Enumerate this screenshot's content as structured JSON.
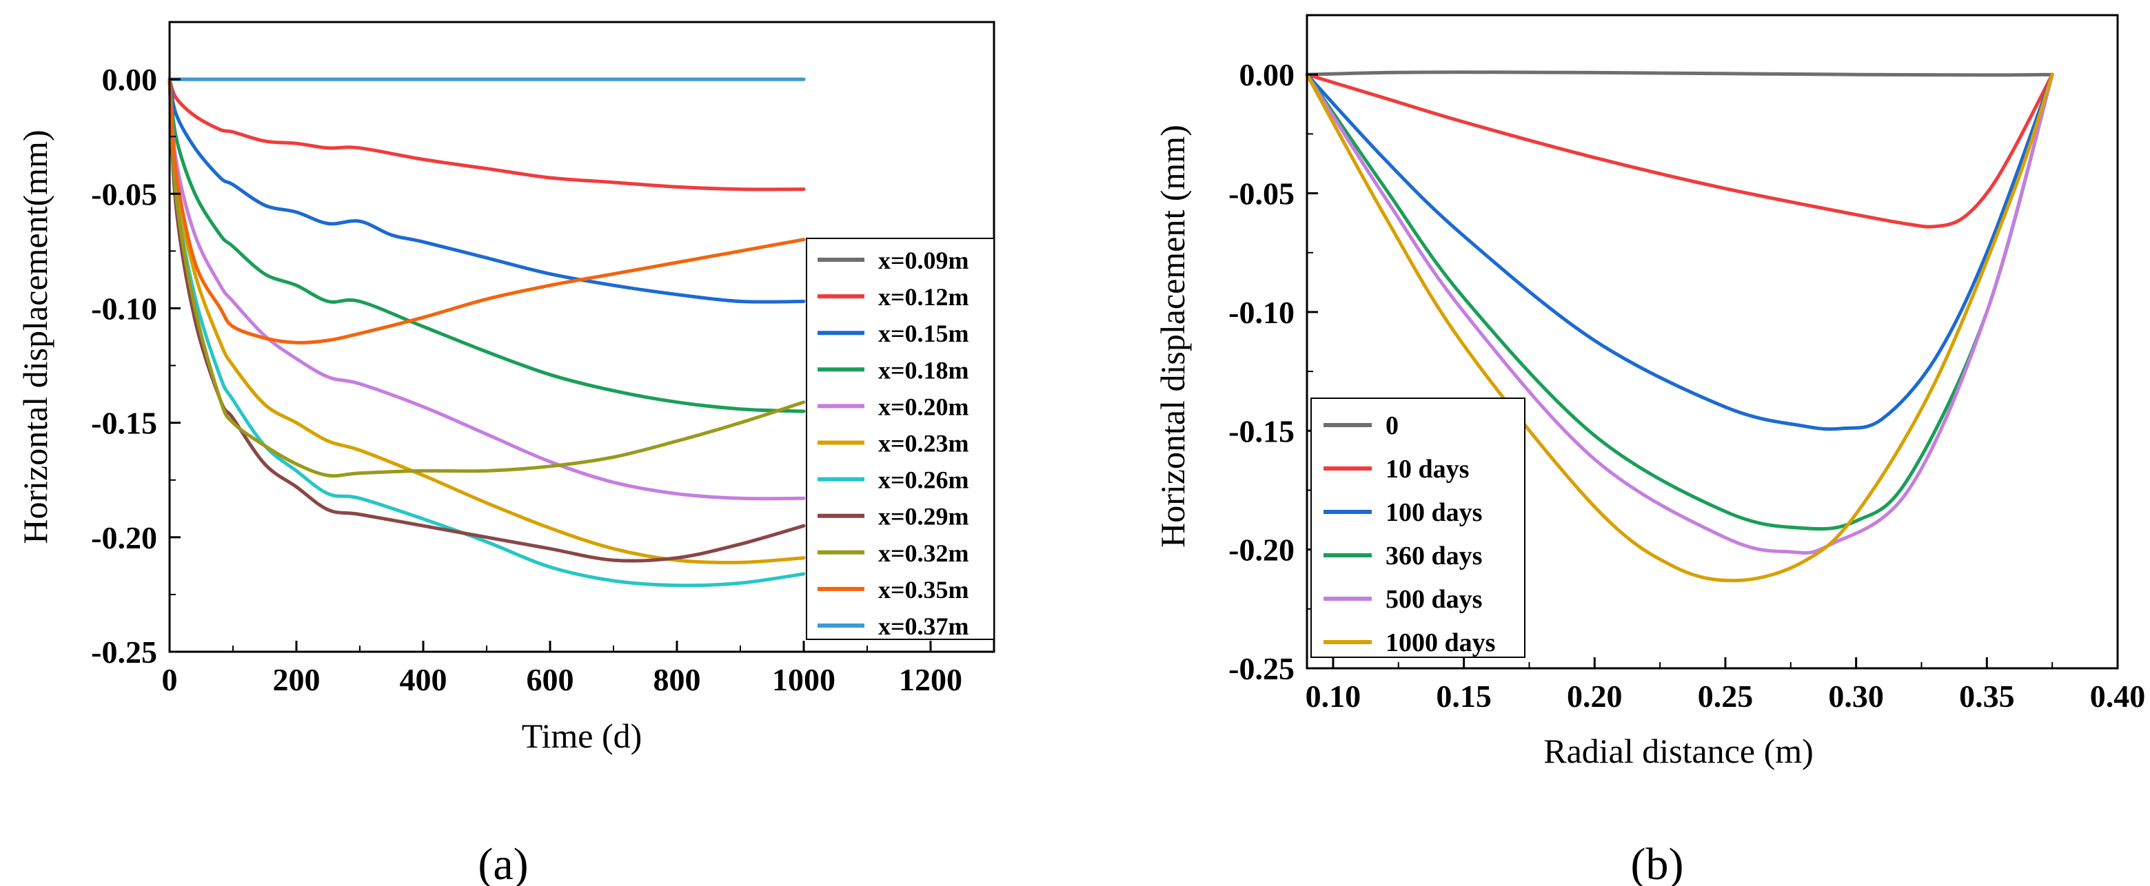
{
  "figure": {
    "panel_labels": [
      "(a)",
      "(b)"
    ]
  },
  "chart_data": [
    {
      "type": "line",
      "panel": "(a)",
      "title": "",
      "xlabel": "Time (d)",
      "ylabel": "Horizontal displacement(mm)",
      "xlim": [
        0,
        1300
      ],
      "ylim": [
        -0.25,
        0.025
      ],
      "xticks": [
        "0",
        "200",
        "400",
        "600",
        "800",
        "1000",
        "1200"
      ],
      "yticks": [
        "0.00",
        "-0.05",
        "-0.10",
        "-0.15",
        "-0.20",
        "-0.25"
      ],
      "grid": false,
      "legend_position": "right",
      "series": [
        {
          "name": "x=0.09m",
          "color": "#6e6e6e",
          "x": [
            0,
            1000
          ],
          "y": [
            0,
            0
          ]
        },
        {
          "name": "x=0.12m",
          "color": "#f03c3c",
          "x": [
            0,
            10,
            40,
            80,
            100,
            150,
            200,
            250,
            300,
            400,
            500,
            600,
            700,
            800,
            900,
            1000
          ],
          "y": [
            0,
            -0.008,
            -0.016,
            -0.022,
            -0.023,
            -0.027,
            -0.028,
            -0.03,
            -0.03,
            -0.035,
            -0.039,
            -0.043,
            -0.045,
            -0.047,
            -0.048,
            -0.048
          ]
        },
        {
          "name": "x=0.15m",
          "color": "#1c6ad3",
          "x": [
            0,
            10,
            40,
            80,
            100,
            150,
            200,
            250,
            300,
            350,
            400,
            500,
            600,
            700,
            800,
            900,
            1000
          ],
          "y": [
            0,
            -0.015,
            -0.03,
            -0.043,
            -0.046,
            -0.055,
            -0.058,
            -0.063,
            -0.062,
            -0.068,
            -0.071,
            -0.078,
            -0.085,
            -0.09,
            -0.094,
            -0.097,
            -0.097
          ]
        },
        {
          "name": "x=0.18m",
          "color": "#1a9e58",
          "x": [
            0,
            10,
            40,
            80,
            100,
            150,
            200,
            250,
            300,
            400,
            500,
            600,
            700,
            800,
            900,
            1000
          ],
          "y": [
            0,
            -0.025,
            -0.05,
            -0.068,
            -0.073,
            -0.085,
            -0.09,
            -0.097,
            -0.097,
            -0.108,
            -0.119,
            -0.129,
            -0.136,
            -0.141,
            -0.144,
            -0.145
          ]
        },
        {
          "name": "x=0.20m",
          "color": "#c57ee0",
          "x": [
            0,
            10,
            40,
            80,
            100,
            150,
            200,
            250,
            300,
            400,
            500,
            600,
            700,
            800,
            900,
            1000
          ],
          "y": [
            0,
            -0.035,
            -0.068,
            -0.09,
            -0.097,
            -0.112,
            -0.122,
            -0.13,
            -0.133,
            -0.143,
            -0.155,
            -0.167,
            -0.176,
            -0.181,
            -0.183,
            -0.183
          ]
        },
        {
          "name": "x=0.23m",
          "color": "#d8a000",
          "x": [
            0,
            10,
            40,
            80,
            100,
            150,
            200,
            250,
            300,
            400,
            500,
            600,
            700,
            800,
            900,
            1000
          ],
          "y": [
            0,
            -0.045,
            -0.085,
            -0.115,
            -0.125,
            -0.142,
            -0.15,
            -0.158,
            -0.162,
            -0.173,
            -0.185,
            -0.196,
            -0.205,
            -0.21,
            -0.211,
            -0.209
          ]
        },
        {
          "name": "x=0.26m",
          "color": "#26c6c6",
          "x": [
            0,
            10,
            40,
            80,
            100,
            150,
            200,
            250,
            300,
            400,
            500,
            600,
            700,
            800,
            900,
            1000
          ],
          "y": [
            0,
            -0.05,
            -0.095,
            -0.13,
            -0.14,
            -0.16,
            -0.171,
            -0.181,
            -0.183,
            -0.192,
            -0.202,
            -0.213,
            -0.219,
            -0.221,
            -0.22,
            -0.216
          ]
        },
        {
          "name": "x=0.29m",
          "color": "#8a4646",
          "x": [
            0,
            10,
            40,
            80,
            100,
            150,
            200,
            250,
            300,
            400,
            500,
            600,
            700,
            800,
            900,
            1000
          ],
          "y": [
            0,
            -0.055,
            -0.105,
            -0.14,
            -0.148,
            -0.168,
            -0.178,
            -0.188,
            -0.19,
            -0.195,
            -0.2,
            -0.205,
            -0.21,
            -0.209,
            -0.203,
            -0.195
          ]
        },
        {
          "name": "x=0.32m",
          "color": "#9a9a1c",
          "x": [
            0,
            10,
            40,
            80,
            100,
            150,
            200,
            250,
            300,
            400,
            500,
            600,
            700,
            800,
            900,
            1000
          ],
          "y": [
            0,
            -0.05,
            -0.1,
            -0.14,
            -0.15,
            -0.16,
            -0.168,
            -0.173,
            -0.172,
            -0.171,
            -0.171,
            -0.169,
            -0.165,
            -0.158,
            -0.15,
            -0.141
          ]
        },
        {
          "name": "x=0.35m",
          "color": "#f3640e",
          "x": [
            0,
            10,
            40,
            80,
            100,
            150,
            200,
            250,
            300,
            400,
            500,
            600,
            700,
            800,
            900,
            1000
          ],
          "y": [
            0,
            -0.04,
            -0.08,
            -0.1,
            -0.108,
            -0.113,
            -0.115,
            -0.114,
            -0.111,
            -0.104,
            -0.096,
            -0.09,
            -0.085,
            -0.08,
            -0.075,
            -0.07
          ]
        },
        {
          "name": "x=0.37m",
          "color": "#3d9ad3",
          "x": [
            0,
            1000
          ],
          "y": [
            0,
            0
          ]
        }
      ]
    },
    {
      "type": "line",
      "panel": "(b)",
      "title": "",
      "xlabel": "Radial distance (m)",
      "ylabel": "Horizontal displacement (mm)",
      "xlim": [
        0.09,
        0.4
      ],
      "ylim": [
        -0.25,
        0.025
      ],
      "xticks": [
        "0.10",
        "0.15",
        "0.20",
        "0.25",
        "0.30",
        "0.35",
        "0.40"
      ],
      "yticks": [
        "0.00",
        "-0.05",
        "-0.10",
        "-0.15",
        "-0.20",
        "-0.25"
      ],
      "grid": false,
      "legend_position": "bottom-left",
      "series": [
        {
          "name": "0",
          "color": "#6e6e6e",
          "x": [
            0.09,
            0.12,
            0.15,
            0.2,
            0.25,
            0.3,
            0.35,
            0.375
          ],
          "y": [
            0,
            0.0008,
            0.001,
            0.0008,
            0.0004,
            0,
            -0.0002,
            0
          ]
        },
        {
          "name": "10 days",
          "color": "#f03c3c",
          "x": [
            0.09,
            0.12,
            0.15,
            0.2,
            0.25,
            0.3,
            0.32,
            0.33,
            0.34,
            0.35,
            0.36,
            0.375
          ],
          "y": [
            0,
            -0.01,
            -0.02,
            -0.035,
            -0.048,
            -0.059,
            -0.063,
            -0.064,
            -0.061,
            -0.05,
            -0.032,
            0
          ]
        },
        {
          "name": "100 days",
          "color": "#1c6ad3",
          "x": [
            0.09,
            0.12,
            0.15,
            0.2,
            0.25,
            0.28,
            0.295,
            0.31,
            0.33,
            0.35,
            0.375
          ],
          "y": [
            0,
            -0.036,
            -0.068,
            -0.112,
            -0.14,
            -0.148,
            -0.149,
            -0.145,
            -0.12,
            -0.075,
            0
          ]
        },
        {
          "name": "360 days",
          "color": "#1a9e58",
          "x": [
            0.09,
            0.12,
            0.15,
            0.2,
            0.25,
            0.28,
            0.3,
            0.32,
            0.35,
            0.375
          ],
          "y": [
            0,
            -0.048,
            -0.094,
            -0.152,
            -0.184,
            -0.191,
            -0.188,
            -0.17,
            -0.1,
            0
          ]
        },
        {
          "name": "500 days",
          "color": "#c57ee0",
          "x": [
            0.09,
            0.12,
            0.15,
            0.2,
            0.25,
            0.275,
            0.29,
            0.32,
            0.35,
            0.375
          ],
          "y": [
            0,
            -0.052,
            -0.1,
            -0.162,
            -0.195,
            -0.201,
            -0.198,
            -0.175,
            -0.1,
            0
          ]
        },
        {
          "name": "1000 days",
          "color": "#d8a000",
          "x": [
            0.09,
            0.12,
            0.15,
            0.2,
            0.23,
            0.255,
            0.28,
            0.3,
            0.33,
            0.36,
            0.375
          ],
          "y": [
            0,
            -0.06,
            -0.114,
            -0.182,
            -0.207,
            -0.213,
            -0.205,
            -0.185,
            -0.13,
            -0.05,
            0
          ]
        }
      ]
    }
  ]
}
